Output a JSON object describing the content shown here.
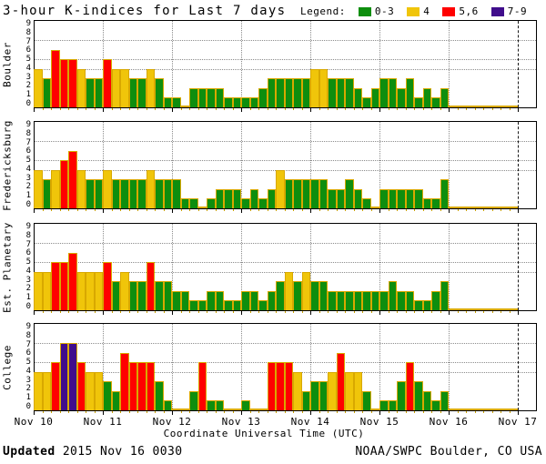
{
  "title": "3-hour K-indices for Last 7 days",
  "legend": {
    "label": "Legend:",
    "items": [
      {
        "label": "0-3",
        "color": "#0e8e0e"
      },
      {
        "label": "4",
        "color": "#f0c50a"
      },
      {
        "label": "5,6",
        "color": "#ff0000"
      },
      {
        "label": "7-9",
        "color": "#400d8c"
      }
    ]
  },
  "footer": {
    "updated_label": "Updated",
    "updated_value": "2015 Nov 16 0030",
    "credit": "NOAA/SWPC Boulder, CO USA"
  },
  "chart_data": {
    "type": "bar",
    "title": "3-hour K-indices for Last 7 days",
    "xlabel": "Coordinate Universal Time (UTC)",
    "x_day_ticks": [
      "Nov 10",
      "Nov 11",
      "Nov 12",
      "Nov 13",
      "Nov 14",
      "Nov 15",
      "Nov 16",
      "Nov 17"
    ],
    "bars_per_day": 8,
    "bar_interval_hours": 3,
    "ylim": [
      0,
      9
    ],
    "y_ticks": [
      9,
      8,
      7,
      6,
      5,
      4,
      3,
      2,
      1,
      0
    ],
    "hgridlines_at": [
      4,
      5,
      7
    ],
    "grid": true,
    "legend_position": "top-right",
    "color_bins": {
      "0-3": "#0e8e0e",
      "4": "#f0c50a",
      "5-6": "#ff0000",
      "7-9": "#400d8c"
    },
    "bar_outline_color": "#d8a800",
    "stations": [
      {
        "name": "Boulder",
        "values": [
          4,
          3,
          6,
          5,
          5,
          4,
          3,
          3,
          5,
          4,
          4,
          3,
          3,
          4,
          3,
          1,
          1,
          0,
          2,
          2,
          2,
          2,
          1,
          1,
          1,
          1,
          2,
          3,
          3,
          3,
          3,
          3,
          4,
          4,
          3,
          3,
          3,
          2,
          1,
          2,
          3,
          3,
          2,
          3,
          1,
          2,
          1,
          2,
          0,
          0,
          0,
          0,
          0,
          0,
          0,
          0
        ]
      },
      {
        "name": "Fredericksburg",
        "values": [
          4,
          3,
          4,
          5,
          6,
          4,
          3,
          3,
          4,
          3,
          3,
          3,
          3,
          4,
          3,
          3,
          3,
          1,
          1,
          0,
          1,
          2,
          2,
          2,
          1,
          2,
          1,
          2,
          4,
          3,
          3,
          3,
          3,
          3,
          2,
          2,
          3,
          2,
          1,
          0,
          2,
          2,
          2,
          2,
          2,
          1,
          1,
          3,
          0,
          0,
          0,
          0,
          0,
          0,
          0,
          0
        ]
      },
      {
        "name": "Est. Planetary",
        "values": [
          4,
          4,
          5,
          5,
          6,
          4,
          4,
          4,
          5,
          3,
          4,
          3,
          3,
          5,
          3,
          3,
          2,
          2,
          1,
          1,
          2,
          2,
          1,
          1,
          2,
          2,
          1,
          2,
          3,
          4,
          3,
          4,
          3,
          3,
          2,
          2,
          2,
          2,
          2,
          2,
          2,
          3,
          2,
          2,
          1,
          1,
          2,
          3,
          0,
          0,
          0,
          0,
          0,
          0,
          0,
          0
        ]
      },
      {
        "name": "College",
        "values": [
          4,
          4,
          5,
          7,
          7,
          5,
          4,
          4,
          3,
          2,
          6,
          5,
          5,
          5,
          3,
          1,
          0,
          0,
          2,
          5,
          1,
          1,
          0,
          0,
          1,
          0,
          0,
          5,
          5,
          5,
          4,
          2,
          3,
          3,
          4,
          6,
          4,
          4,
          2,
          0,
          1,
          1,
          3,
          5,
          3,
          2,
          1,
          2,
          0,
          0,
          0,
          0,
          0,
          0,
          0,
          0
        ]
      }
    ]
  }
}
